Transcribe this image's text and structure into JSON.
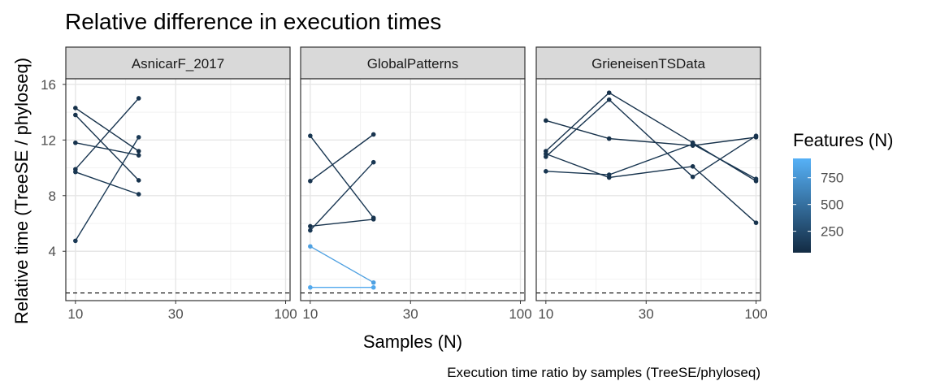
{
  "chart_data": {
    "type": "line",
    "title": "Relative difference in execution times",
    "caption": "Execution time ratio by samples (TreeSE/phyloseq)",
    "xlabel": "Samples (N)",
    "ylabel": "Relative time (TreeSE / phyloseq)",
    "x_scale": "log10",
    "x_range": [
      9,
      105
    ],
    "x_ticks": [
      10,
      30,
      100
    ],
    "x_tick_labels": [
      "10",
      "30",
      "100"
    ],
    "y_range": [
      0.45,
      16.4
    ],
    "y_ticks": [
      4,
      8,
      12,
      16
    ],
    "y_tick_labels": [
      "4",
      "8",
      "12",
      "16"
    ],
    "reference_line": {
      "y": 1,
      "style": "dashed"
    },
    "grid": true,
    "legend": {
      "title": "Features (N)",
      "position": "right",
      "type": "colorbar",
      "range": [
        50,
        930
      ],
      "ticks": [
        250,
        500,
        750
      ],
      "tick_labels": [
        "250",
        "500",
        "750"
      ],
      "color_low": "#132b43",
      "color_high": "#56b1f7"
    },
    "panels": [
      {
        "label": "AsnicarF_2017",
        "series": [
          {
            "features": 80,
            "points": [
              [
                10,
                14.3
              ],
              [
                20,
                11.2
              ]
            ]
          },
          {
            "features": 95,
            "points": [
              [
                10,
                13.8
              ],
              [
                20,
                9.1
              ]
            ]
          },
          {
            "features": 100,
            "points": [
              [
                10,
                11.8
              ],
              [
                20,
                10.9
              ]
            ]
          },
          {
            "features": 110,
            "points": [
              [
                10,
                9.9
              ],
              [
                20,
                15.0
              ]
            ]
          },
          {
            "features": 120,
            "points": [
              [
                10,
                9.7
              ],
              [
                20,
                8.1
              ]
            ]
          },
          {
            "features": 140,
            "points": [
              [
                10,
                4.75
              ],
              [
                20,
                12.2
              ]
            ]
          }
        ]
      },
      {
        "label": "GlobalPatterns",
        "series": [
          {
            "features": 120,
            "points": [
              [
                10,
                12.3
              ],
              [
                20,
                6.4
              ]
            ]
          },
          {
            "features": 110,
            "points": [
              [
                10,
                9.05
              ],
              [
                20,
                12.4
              ]
            ]
          },
          {
            "features": 130,
            "points": [
              [
                10,
                5.5
              ],
              [
                20,
                10.4
              ]
            ]
          },
          {
            "features": 100,
            "points": [
              [
                10,
                5.8
              ],
              [
                20,
                6.3
              ]
            ]
          },
          {
            "features": 820,
            "points": [
              [
                10,
                4.35
              ],
              [
                20,
                1.75
              ]
            ]
          },
          {
            "features": 880,
            "points": [
              [
                10,
                1.4
              ],
              [
                20,
                1.4
              ]
            ]
          }
        ]
      },
      {
        "label": "GrieneisenTSData",
        "series": [
          {
            "features": 80,
            "points": [
              [
                10,
                13.4
              ],
              [
                20,
                12.1
              ],
              [
                50,
                11.6
              ],
              [
                100,
                12.2
              ]
            ]
          },
          {
            "features": 90,
            "points": [
              [
                10,
                11.2
              ],
              [
                20,
                15.4
              ],
              [
                50,
                11.8
              ],
              [
                100,
                9.05
              ]
            ]
          },
          {
            "features": 100,
            "points": [
              [
                10,
                11.0
              ],
              [
                20,
                9.3
              ],
              [
                50,
                10.1
              ],
              [
                100,
                6.05
              ]
            ]
          },
          {
            "features": 110,
            "points": [
              [
                10,
                10.8
              ],
              [
                20,
                14.9
              ],
              [
                50,
                9.35
              ],
              [
                100,
                12.3
              ]
            ]
          },
          {
            "features": 120,
            "points": [
              [
                10,
                9.75
              ],
              [
                20,
                9.5
              ],
              [
                50,
                11.7
              ],
              [
                100,
                9.2
              ]
            ]
          }
        ]
      }
    ]
  }
}
